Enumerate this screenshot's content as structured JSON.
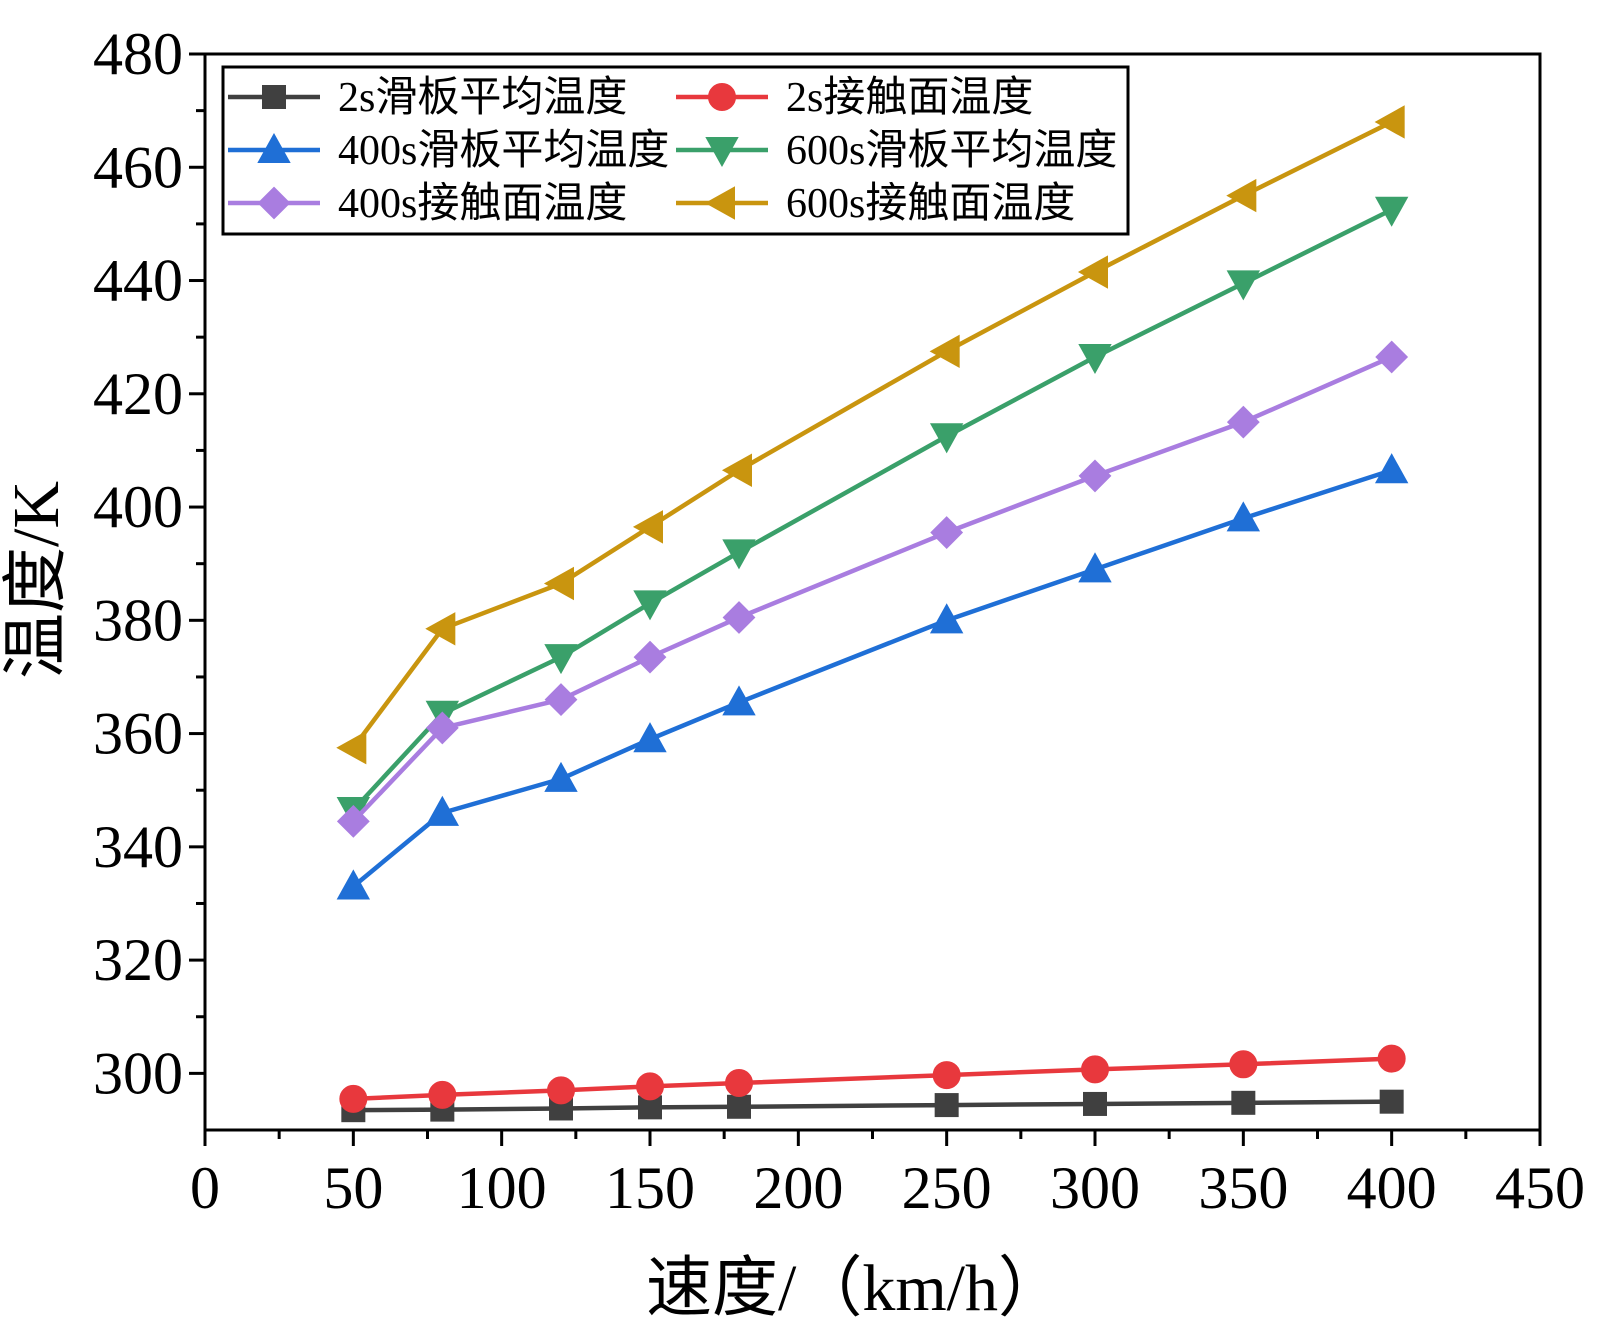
{
  "chart_data": {
    "type": "line",
    "title": "",
    "xlabel": "速度/（km/h）",
    "ylabel": "温度/K",
    "xlim": [
      0,
      450
    ],
    "ylim": [
      290,
      480
    ],
    "xticks": [
      0,
      50,
      100,
      150,
      200,
      250,
      300,
      350,
      400,
      450
    ],
    "yticks": [
      300,
      320,
      340,
      360,
      380,
      400,
      420,
      440,
      460,
      480
    ],
    "xtick_labels": [
      "0",
      "50",
      "100",
      "150",
      "200",
      "250",
      "300",
      "350",
      "400",
      "450"
    ],
    "ytick_labels": [
      "300",
      "320",
      "340",
      "360",
      "380",
      "400",
      "420",
      "440",
      "460",
      "480"
    ],
    "grid": false,
    "legend_position": "top-left",
    "x": [
      50,
      80,
      120,
      150,
      180,
      250,
      300,
      350,
      400
    ],
    "series": [
      {
        "name": "2s滑板平均温度",
        "color": "#404040",
        "marker": "square",
        "values": [
          293.5,
          293.6,
          293.8,
          294.0,
          294.1,
          294.4,
          294.6,
          294.8,
          295.0
        ]
      },
      {
        "name": "2s接触面温度",
        "color": "#e8383d",
        "marker": "circle",
        "values": [
          295.5,
          296.2,
          297.0,
          297.7,
          298.3,
          299.7,
          300.7,
          301.6,
          302.6
        ]
      },
      {
        "name": "400s滑板平均温度",
        "color": "#1f6fd6",
        "marker": "triangle-up",
        "values": [
          333,
          346,
          352,
          359,
          365.5,
          380,
          389,
          398,
          406.5
        ]
      },
      {
        "name": "600s滑板平均温度",
        "color": "#3aa06a",
        "marker": "triangle-down",
        "values": [
          346.5,
          363.5,
          373.5,
          383,
          392,
          412.5,
          426.5,
          439.5,
          452.5
        ]
      },
      {
        "name": "400s接触面温度",
        "color": "#a97de0",
        "marker": "diamond",
        "values": [
          344.5,
          361,
          366,
          373.5,
          380.5,
          395.5,
          405.5,
          415,
          426.5
        ]
      },
      {
        "name": "600s接触面温度",
        "color": "#c9950f",
        "marker": "triangle-left",
        "values": [
          357.5,
          378.5,
          386.5,
          396.5,
          406.5,
          427.5,
          441.5,
          455,
          468
        ]
      }
    ]
  }
}
